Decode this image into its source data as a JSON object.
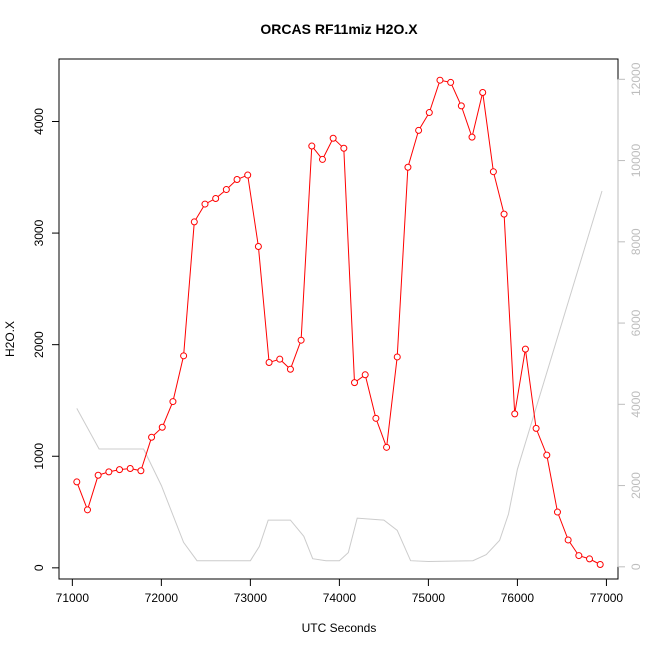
{
  "chart_data": {
    "type": "line",
    "title": "ORCAS RF11miz H2O.X",
    "xlabel": "UTC Seconds",
    "ylabel": "H2O.X",
    "xlim": [
      70850,
      77130
    ],
    "ylim": [
      -100,
      4560
    ],
    "ylim_right": [
      -300,
      12500
    ],
    "x_ticks": [
      71000,
      72000,
      73000,
      74000,
      75000,
      76000,
      77000
    ],
    "y_ticks": [
      0,
      1000,
      2000,
      3000,
      4000
    ],
    "y_ticks_right": [
      0,
      2000,
      4000,
      6000,
      8000,
      10000,
      12000
    ],
    "colors": {
      "primary": "#ff0000",
      "secondary": "#cccccc",
      "secondary_axis": "#bdbdbd"
    },
    "series": [
      {
        "axis": "left",
        "style": "line+points",
        "x": [
          71050,
          71170,
          71290,
          71410,
          71530,
          71650,
          71770,
          71890,
          72010,
          72130,
          72250,
          72370,
          72490,
          72610,
          72730,
          72850,
          72970,
          73090,
          73210,
          73330,
          73450,
          73570,
          73690,
          73810,
          73930,
          74050,
          74170,
          74290,
          74410,
          74530,
          74650,
          74770,
          74890,
          75010,
          75130,
          75250,
          75370,
          75490,
          75610,
          75730,
          75850,
          75970,
          76090,
          76210,
          76330,
          76450,
          76570,
          76690,
          76810,
          76930
        ],
        "y": [
          770,
          520,
          830,
          860,
          880,
          890,
          870,
          1170,
          1260,
          1490,
          1900,
          3100,
          3260,
          3310,
          3390,
          3480,
          3520,
          2880,
          1840,
          1870,
          1780,
          2040,
          3780,
          3660,
          3850,
          3760,
          1660,
          1730,
          1340,
          1080,
          1890,
          3590,
          3920,
          4080,
          4370,
          4350,
          4140,
          3860,
          4260,
          3550,
          3170,
          1380,
          1960,
          1250,
          1010,
          500,
          250,
          110,
          80,
          30
        ]
      },
      {
        "axis": "right",
        "style": "line",
        "x": [
          71050,
          71300,
          71800,
          72000,
          72250,
          72400,
          72800,
          73000,
          73100,
          73200,
          73450,
          73600,
          73700,
          73850,
          74000,
          74100,
          74200,
          74500,
          74650,
          74800,
          75000,
          75500,
          75650,
          75800,
          75900,
          76000,
          76950
        ],
        "y": [
          3900,
          2900,
          2900,
          2000,
          600,
          150,
          150,
          150,
          500,
          1150,
          1150,
          750,
          200,
          150,
          150,
          350,
          1200,
          1150,
          900,
          150,
          130,
          150,
          300,
          650,
          1300,
          2400,
          9250
        ]
      }
    ]
  }
}
